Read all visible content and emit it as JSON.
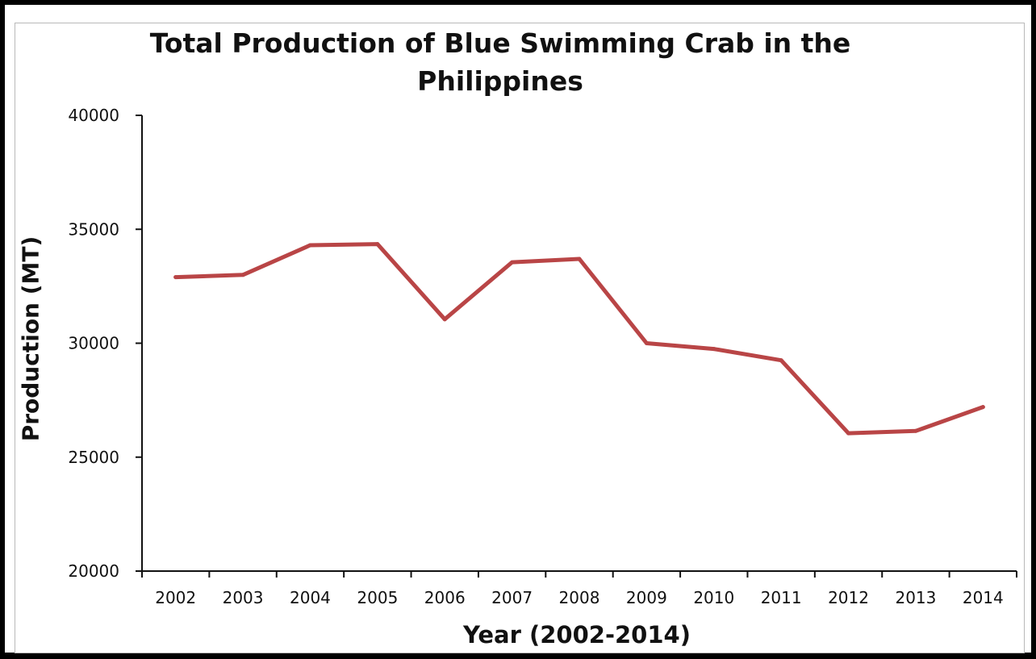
{
  "chart_data": {
    "type": "line",
    "title": "Total Production of Blue Swimming Crab in the\nPhilippines",
    "xlabel": "Year (2002-2014)",
    "ylabel": "Production (MT)",
    "categories": [
      "2002",
      "2003",
      "2004",
      "2005",
      "2006",
      "2007",
      "2008",
      "2009",
      "2010",
      "2011",
      "2012",
      "2013",
      "2014"
    ],
    "series": [
      {
        "values": [
          32900,
          33000,
          34300,
          34350,
          31050,
          33550,
          33700,
          30000,
          29750,
          29250,
          26050,
          26150,
          27200
        ]
      }
    ],
    "ylim": [
      20000,
      40000
    ],
    "yticks": [
      "20000",
      "25000",
      "30000",
      "35000",
      "40000"
    ],
    "grid": false,
    "legend": "none",
    "colors": {
      "line": "#b94546",
      "axis": "#111111"
    }
  }
}
